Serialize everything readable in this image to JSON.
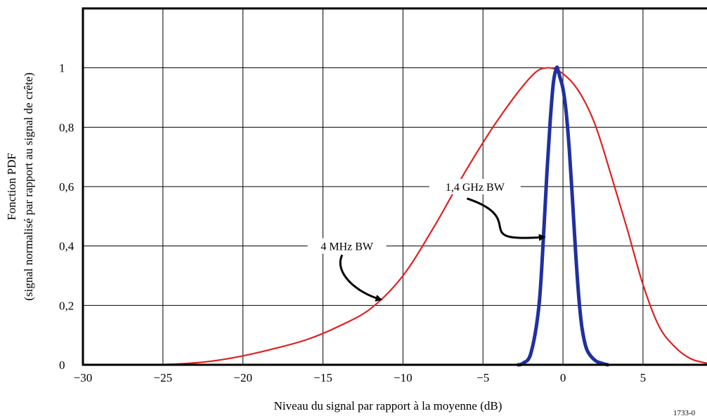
{
  "chart_data": {
    "type": "line",
    "title": "",
    "xlabel": "Niveau du signal par rapport à la moyenne (dB)",
    "ylabel_line1": "Fonction PDF",
    "ylabel_line2": "(signal normalisé par rapport au signal de crête)",
    "xlim": [
      -30,
      9
    ],
    "ylim": [
      0,
      1.2
    ],
    "grid": true,
    "xticks": [
      -30,
      -25,
      -20,
      -15,
      -10,
      -5,
      0,
      5
    ],
    "xtick_labels": [
      "−30",
      "−25",
      "−20",
      "−15",
      "−10",
      "−5",
      "0",
      "5"
    ],
    "yticks": [
      0,
      0.2,
      0.4,
      0.6,
      0.8,
      1
    ],
    "ytick_labels": [
      "0",
      "0,2",
      "0,4",
      "0,6",
      "0,8",
      "1"
    ],
    "series": [
      {
        "name": "4 MHz BW",
        "color": "#e02020",
        "x": [
          -30,
          -26,
          -24,
          -22,
          -20,
          -18,
          -16,
          -14,
          -12,
          -10,
          -8,
          -6,
          -4,
          -2,
          -1,
          0,
          1,
          2,
          3,
          4,
          5,
          6,
          7,
          8,
          9
        ],
        "y": [
          0,
          0,
          0.003,
          0.012,
          0.03,
          0.055,
          0.085,
          0.13,
          0.19,
          0.3,
          0.47,
          0.66,
          0.83,
          0.97,
          1.0,
          0.98,
          0.92,
          0.81,
          0.64,
          0.46,
          0.27,
          0.13,
          0.06,
          0.02,
          0.005
        ]
      },
      {
        "name": "1,4 GHz BW",
        "color": "#2030a0",
        "x": [
          -2.8,
          -2.5,
          -2.0,
          -1.5,
          -1.2,
          -1.0,
          -0.8,
          -0.6,
          -0.4,
          -0.3,
          -0.2,
          0,
          0.2,
          0.4,
          0.6,
          0.8,
          1.0,
          1.2,
          1.5,
          2.0,
          2.5,
          2.8
        ],
        "y": [
          0,
          0.005,
          0.04,
          0.2,
          0.45,
          0.65,
          0.82,
          0.95,
          1.0,
          0.99,
          0.97,
          0.93,
          0.85,
          0.72,
          0.55,
          0.37,
          0.22,
          0.12,
          0.05,
          0.015,
          0.004,
          0
        ]
      }
    ],
    "annotations": [
      {
        "text": "1,4 GHz BW",
        "anchor_x": -5.5,
        "anchor_y": 0.6,
        "arrow_to": [
          -1.2,
          0.43
        ],
        "arrow_from": [
          -6.0,
          0.56
        ]
      },
      {
        "text": "4 MHz BW",
        "anchor_x": -13.5,
        "anchor_y": 0.4,
        "arrow_to": [
          -11.4,
          0.22
        ],
        "arrow_from": [
          -13.8,
          0.37
        ]
      }
    ],
    "figure_id": "1733-0"
  }
}
